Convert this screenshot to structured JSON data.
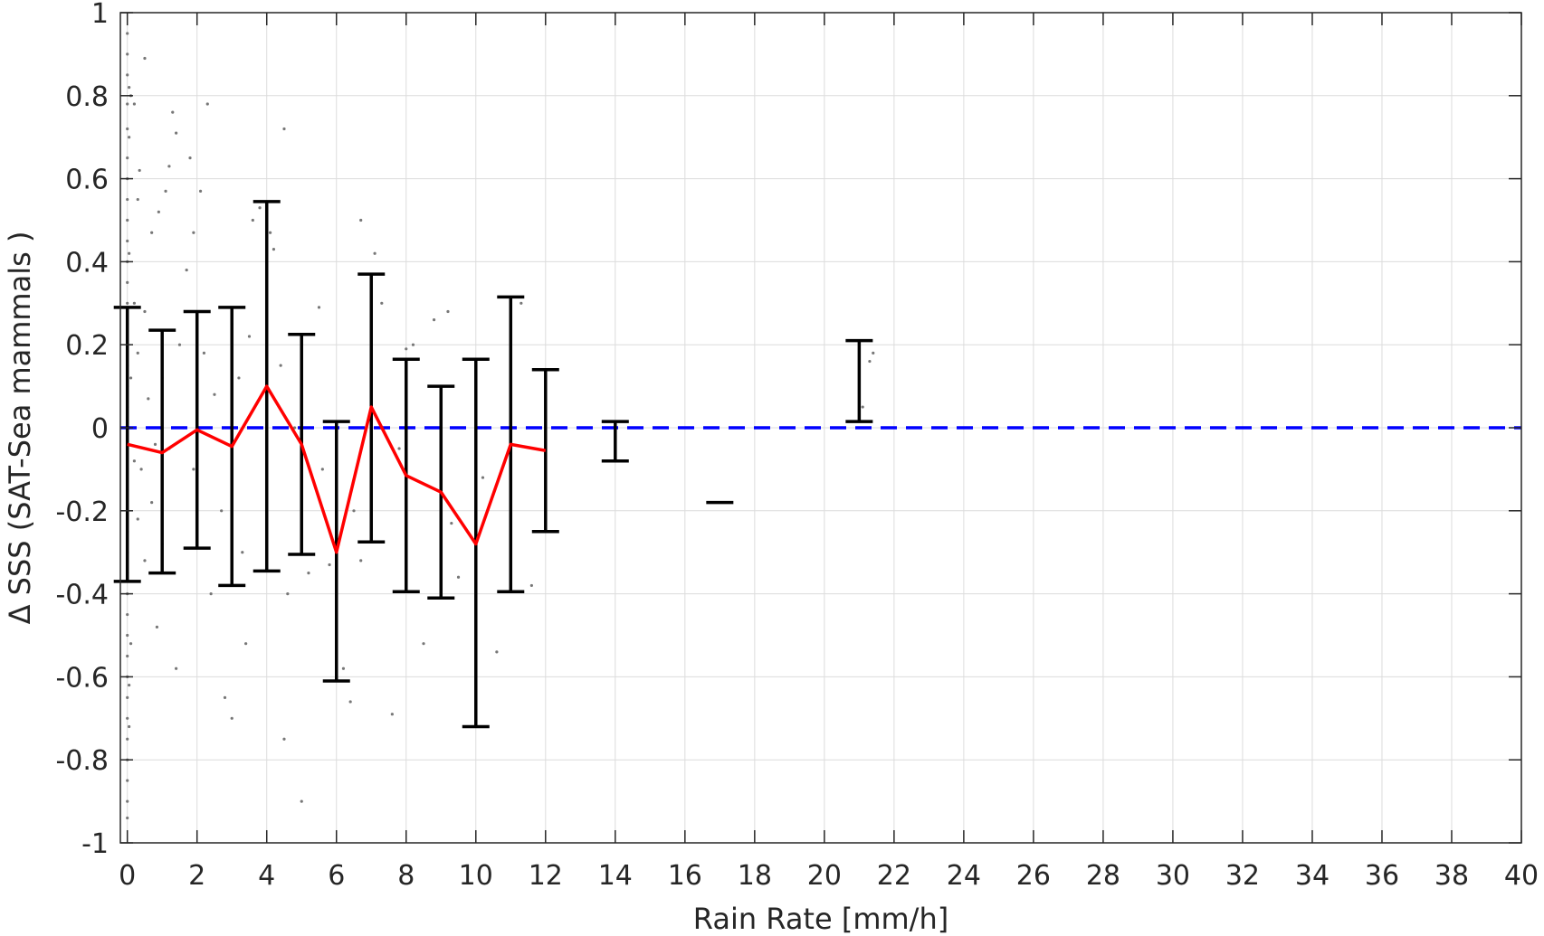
{
  "chart_data": {
    "type": "scatter",
    "xlabel": "Rain Rate [mm/h]",
    "ylabel": "Δ SSS (SAT-Sea mammals )",
    "xlim": [
      -0.2,
      40
    ],
    "ylim": [
      -1,
      1
    ],
    "xticks": [
      0,
      2,
      4,
      6,
      8,
      10,
      12,
      14,
      16,
      18,
      20,
      22,
      24,
      26,
      28,
      30,
      32,
      34,
      36,
      38,
      40
    ],
    "yticks": [
      1,
      0.8,
      0.6,
      0.4,
      0.2,
      0,
      -0.2,
      -0.4,
      -0.6,
      -0.8,
      -1
    ],
    "ytick_labels": [
      "1",
      "0.8",
      "0.6",
      "0.4",
      "0.2",
      "0",
      "-0.2",
      "-0.4",
      "-0.6",
      "-0.8",
      "-1"
    ],
    "grid": true,
    "mean_line": {
      "color": "#ff0000",
      "x": [
        0,
        1,
        2,
        3,
        4,
        5,
        6,
        7,
        8,
        9,
        10,
        11,
        12
      ],
      "y": [
        -0.04,
        -0.06,
        -0.005,
        -0.045,
        0.1,
        -0.04,
        -0.3,
        0.05,
        -0.115,
        -0.155,
        -0.28,
        -0.04,
        -0.055
      ]
    },
    "error_bars": {
      "color": "#000000",
      "bins": [
        {
          "x": 0,
          "low": -0.37,
          "high": 0.29
        },
        {
          "x": 1,
          "low": -0.35,
          "high": 0.235
        },
        {
          "x": 2,
          "low": -0.29,
          "high": 0.28
        },
        {
          "x": 3,
          "low": -0.38,
          "high": 0.29
        },
        {
          "x": 4,
          "low": -0.345,
          "high": 0.545
        },
        {
          "x": 5,
          "low": -0.305,
          "high": 0.225
        },
        {
          "x": 6,
          "low": -0.61,
          "high": 0.015
        },
        {
          "x": 7,
          "low": -0.275,
          "high": 0.37
        },
        {
          "x": 8,
          "low": -0.395,
          "high": 0.165
        },
        {
          "x": 9,
          "low": -0.41,
          "high": 0.1
        },
        {
          "x": 10,
          "low": -0.72,
          "high": 0.165
        },
        {
          "x": 11,
          "low": -0.395,
          "high": 0.315
        },
        {
          "x": 12,
          "low": -0.25,
          "high": 0.14
        },
        {
          "x": 14,
          "low": -0.08,
          "high": 0.015
        },
        {
          "x": 17,
          "low": -0.18,
          "high": -0.18
        },
        {
          "x": 21,
          "low": 0.015,
          "high": 0.21
        }
      ]
    },
    "reference_line": {
      "y": 0,
      "color": "#0000ff",
      "style": "dashed"
    },
    "scatter": {
      "color": "#777777",
      "points": [
        [
          0,
          0.95
        ],
        [
          0,
          0.9
        ],
        [
          0,
          0.85
        ],
        [
          0,
          0.78
        ],
        [
          0,
          0.72
        ],
        [
          0,
          0.65
        ],
        [
          0,
          0.6
        ],
        [
          0,
          0.55
        ],
        [
          0,
          0.5
        ],
        [
          0,
          0.45
        ],
        [
          0,
          0.4
        ],
        [
          0,
          0.35
        ],
        [
          0,
          0.3
        ],
        [
          0,
          0.25
        ],
        [
          0,
          0.2
        ],
        [
          0,
          0.15
        ],
        [
          0,
          0.1
        ],
        [
          0,
          0.05
        ],
        [
          0,
          0.0
        ],
        [
          0,
          -0.05
        ],
        [
          0,
          -0.1
        ],
        [
          0,
          -0.15
        ],
        [
          0,
          -0.2
        ],
        [
          0,
          -0.25
        ],
        [
          0,
          -0.3
        ],
        [
          0,
          -0.35
        ],
        [
          0,
          -0.4
        ],
        [
          0,
          -0.45
        ],
        [
          0,
          -0.5
        ],
        [
          0,
          -0.55
        ],
        [
          0,
          -0.6
        ],
        [
          0,
          -0.65
        ],
        [
          0,
          -0.7
        ],
        [
          0,
          -0.75
        ],
        [
          0,
          -0.8
        ],
        [
          0,
          -0.85
        ],
        [
          0,
          -0.9
        ],
        [
          0,
          -0.94
        ],
        [
          0.05,
          0.82
        ],
        [
          0.05,
          0.7
        ],
        [
          0.05,
          0.42
        ],
        [
          0.05,
          -0.62
        ],
        [
          0.05,
          -0.72
        ],
        [
          0.1,
          0.8
        ],
        [
          0.1,
          0.12
        ],
        [
          0.1,
          -0.52
        ],
        [
          0.2,
          0.78
        ],
        [
          0.2,
          0.3
        ],
        [
          0.2,
          -0.08
        ],
        [
          0.3,
          0.55
        ],
        [
          0.3,
          0.18
        ],
        [
          0.3,
          -0.22
        ],
        [
          0.35,
          0.62
        ],
        [
          0.4,
          -0.1
        ],
        [
          0.5,
          0.89
        ],
        [
          0.5,
          0.28
        ],
        [
          0.5,
          -0.32
        ],
        [
          0.6,
          0.07
        ],
        [
          0.7,
          0.47
        ],
        [
          0.7,
          -0.18
        ],
        [
          0.8,
          -0.04
        ],
        [
          0.85,
          -0.48
        ],
        [
          0.9,
          0.52
        ],
        [
          1.0,
          0.12
        ],
        [
          1.0,
          -0.28
        ],
        [
          1.1,
          0.57
        ],
        [
          1.2,
          0.63
        ],
        [
          1.2,
          -0.05
        ],
        [
          1.3,
          0.76
        ],
        [
          1.4,
          0.71
        ],
        [
          1.4,
          -0.58
        ],
        [
          1.5,
          0.2
        ],
        [
          1.6,
          0.0
        ],
        [
          1.7,
          0.38
        ],
        [
          1.8,
          0.65
        ],
        [
          1.9,
          -0.1
        ],
        [
          1.9,
          0.47
        ],
        [
          2.1,
          0.57
        ],
        [
          2.2,
          0.18
        ],
        [
          2.3,
          0.78
        ],
        [
          2.4,
          -0.4
        ],
        [
          2.5,
          0.08
        ],
        [
          2.7,
          -0.2
        ],
        [
          2.8,
          -0.65
        ],
        [
          3.0,
          -0.7
        ],
        [
          3.0,
          0.25
        ],
        [
          3.2,
          0.12
        ],
        [
          3.3,
          -0.3
        ],
        [
          3.4,
          -0.52
        ],
        [
          3.5,
          0.22
        ],
        [
          3.6,
          0.5
        ],
        [
          3.8,
          0.53
        ],
        [
          4.1,
          0.47
        ],
        [
          4.2,
          0.43
        ],
        [
          4.4,
          0.15
        ],
        [
          4.5,
          0.72
        ],
        [
          4.5,
          -0.75
        ],
        [
          4.6,
          -0.4
        ],
        [
          4.8,
          0.0
        ],
        [
          5.0,
          -0.2
        ],
        [
          5.0,
          -0.9
        ],
        [
          5.2,
          -0.35
        ],
        [
          5.5,
          0.29
        ],
        [
          5.6,
          -0.1
        ],
        [
          5.8,
          -0.33
        ],
        [
          6.2,
          -0.58
        ],
        [
          6.4,
          -0.66
        ],
        [
          6.5,
          -0.2
        ],
        [
          6.7,
          0.5
        ],
        [
          6.7,
          -0.32
        ],
        [
          7.0,
          0.05
        ],
        [
          7.1,
          0.42
        ],
        [
          7.3,
          0.3
        ],
        [
          7.6,
          -0.69
        ],
        [
          7.8,
          -0.05
        ],
        [
          8.0,
          0.19
        ],
        [
          8.2,
          0.2
        ],
        [
          8.5,
          -0.52
        ],
        [
          8.8,
          0.26
        ],
        [
          9.2,
          0.28
        ],
        [
          9.3,
          -0.23
        ],
        [
          9.5,
          -0.36
        ],
        [
          10.2,
          -0.12
        ],
        [
          10.6,
          -0.54
        ],
        [
          11.3,
          0.3
        ],
        [
          11.6,
          -0.38
        ],
        [
          21.1,
          0.05
        ],
        [
          21.3,
          0.16
        ],
        [
          21.4,
          0.18
        ]
      ]
    }
  }
}
